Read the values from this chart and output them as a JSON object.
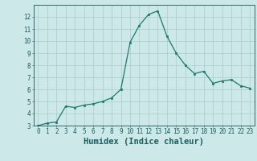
{
  "x": [
    0,
    1,
    2,
    3,
    4,
    5,
    6,
    7,
    8,
    9,
    10,
    11,
    12,
    13,
    14,
    15,
    16,
    17,
    18,
    19,
    20,
    21,
    22,
    23
  ],
  "y": [
    3.0,
    3.2,
    3.3,
    4.6,
    4.5,
    4.7,
    4.8,
    5.0,
    5.3,
    6.0,
    9.9,
    11.3,
    12.2,
    12.5,
    10.4,
    9.0,
    8.0,
    7.3,
    7.5,
    6.5,
    6.7,
    6.8,
    6.3,
    6.1
  ],
  "xlabel": "Humidex (Indice chaleur)",
  "ylim": [
    3,
    13
  ],
  "xlim": [
    -0.5,
    23.5
  ],
  "yticks": [
    3,
    4,
    5,
    6,
    7,
    8,
    9,
    10,
    11,
    12
  ],
  "xticks": [
    0,
    1,
    2,
    3,
    4,
    5,
    6,
    7,
    8,
    9,
    10,
    11,
    12,
    13,
    14,
    15,
    16,
    17,
    18,
    19,
    20,
    21,
    22,
    23
  ],
  "line_color": "#1a7a6e",
  "marker_color": "#1a7a6e",
  "bg_color": "#cce8e8",
  "grid_color": "#aacccc",
  "axes_color": "#336666",
  "label_color": "#1a5f5f",
  "tick_label_fontsize": 5.5,
  "xlabel_fontsize": 7.5
}
